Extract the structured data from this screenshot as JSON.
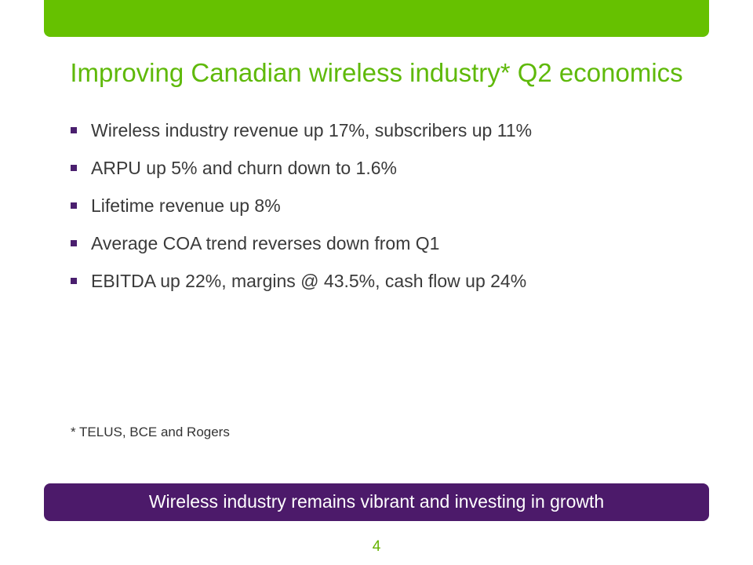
{
  "slide": {
    "title": "Improving Canadian wireless industry* Q2 economics",
    "bullets": [
      "Wireless industry revenue up 17%, subscribers up 11%",
      "ARPU up 5% and churn down to 1.6%",
      "Lifetime revenue up 8%",
      "Average COA trend reverses down from Q1",
      "EBITDA up 22%, margins @ 43.5%, cash flow up 24%"
    ],
    "footnote": "* TELUS, BCE and Rogers",
    "banner": "Wireless industry remains vibrant and investing in growth",
    "page_number": "4"
  },
  "colors": {
    "accent_green": "#66c100",
    "title_green": "#5fb90a",
    "accent_purple": "#4c1a6a"
  }
}
